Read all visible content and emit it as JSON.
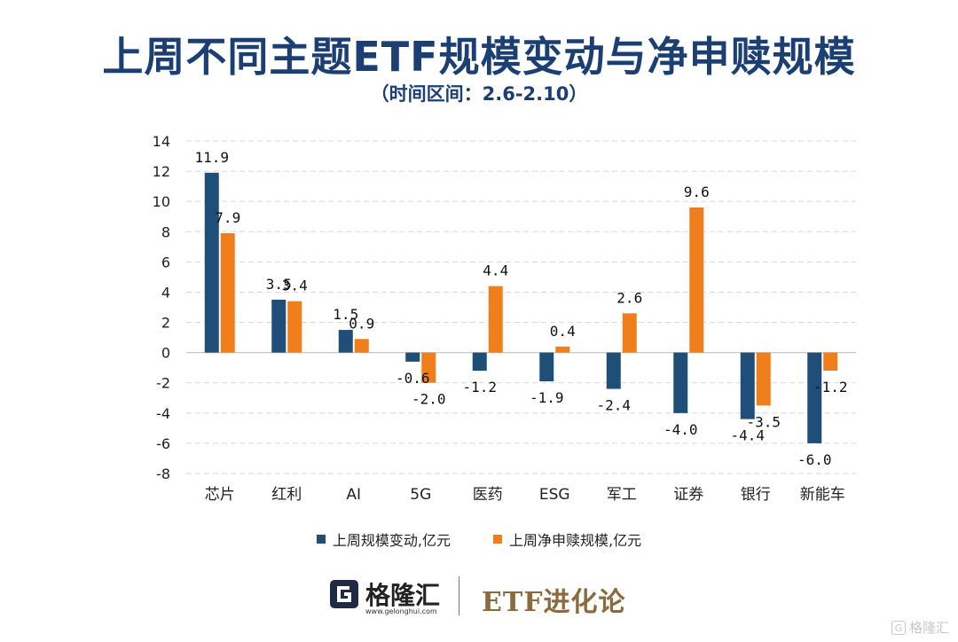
{
  "header": {
    "title": "上周不同主题ETF规模变动与净申赎规模",
    "subtitle": "（时间区间：2.6-2.10）"
  },
  "chart_data": {
    "type": "bar",
    "categories": [
      "芯片",
      "红利",
      "AI",
      "5G",
      "医药",
      "ESG",
      "军工",
      "证券",
      "银行",
      "新能车"
    ],
    "series": [
      {
        "name": "上周规模变动,亿元",
        "color": "#1f4e79",
        "values": [
          11.9,
          3.5,
          1.5,
          -0.6,
          -1.2,
          -1.9,
          -2.4,
          -4.0,
          -4.4,
          -6.0
        ],
        "labels": [
          "11.9",
          "3.5",
          "1.5",
          "-0.6",
          "-1.2",
          "-1.9",
          "-2.4",
          "-4.0",
          "-4.4",
          "-6.0"
        ]
      },
      {
        "name": "上周净申赎规模,亿元",
        "color": "#f07f1b",
        "values": [
          7.9,
          3.4,
          0.9,
          -2.0,
          4.4,
          0.4,
          2.6,
          9.6,
          -3.5,
          -1.2
        ],
        "labels": [
          "7.9",
          "3.4",
          "0.9",
          "-2.0",
          "4.4",
          "0.4",
          "2.6",
          "9.6",
          "-3.5",
          "-1.2"
        ]
      }
    ],
    "ylim": [
      -8,
      14
    ],
    "yticks": [
      "14",
      "12",
      "10",
      "8",
      "6",
      "4",
      "2",
      "0",
      "-2",
      "-4",
      "-6",
      "-8"
    ],
    "grid": true,
    "legend": "bottom-center"
  },
  "footer": {
    "logo_text": "格隆汇",
    "logo_url": "www.gelonghui.com",
    "brand": "ETF进化论",
    "watermark": "格隆汇",
    "watermark_mark": "G"
  }
}
